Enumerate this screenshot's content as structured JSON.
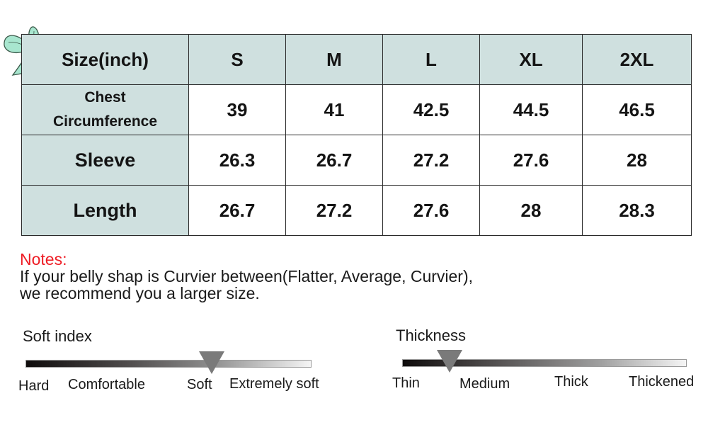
{
  "table": {
    "header": [
      "Size(inch)",
      "S",
      "M",
      "L",
      "XL",
      "2XL"
    ],
    "rows": [
      {
        "label": "Chest Circumference",
        "values": [
          "39",
          "41",
          "42.5",
          "44.5",
          "46.5"
        ]
      },
      {
        "label": "Sleeve",
        "values": [
          "26.3",
          "26.7",
          "27.2",
          "27.6",
          "28"
        ]
      },
      {
        "label": "Length",
        "values": [
          "26.7",
          "27.2",
          "27.6",
          "28",
          "28.3"
        ]
      }
    ]
  },
  "notes": {
    "label": "Notes:",
    "line1": "If your belly shap is Curvier between(Flatter, Average, Curvier),",
    "line2": "we recommend you a larger size."
  },
  "soft_index": {
    "title": "Soft index",
    "labels": [
      "Hard",
      "Comfortable",
      "Soft",
      "Extremely soft"
    ],
    "selected": "Soft"
  },
  "thickness": {
    "title": "Thickness",
    "labels": [
      "Thin",
      "Medium",
      "Thick",
      "Thickened"
    ],
    "selected": "Medium"
  },
  "colors": {
    "header_fill": "#cfe0df",
    "notes_label": "#ee1c24",
    "marker": "#7a7a7a",
    "bow": "#a8e6cf"
  },
  "icons": {
    "decoration": "ribbon-bow-icon"
  }
}
